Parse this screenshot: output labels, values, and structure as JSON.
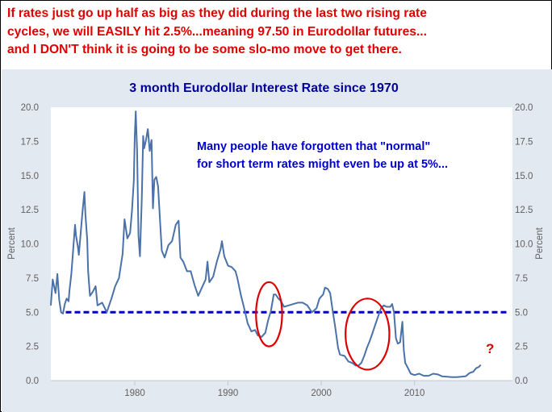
{
  "headline": {
    "lines": [
      "If rates just go up half as big as they did during the last two rising rate",
      "cycles, we will EASILY hit 2.5%...meaning 97.50 in Eurodollar futures...",
      "and I DON'T think it is going to be some slo-mo move to get there."
    ]
  },
  "colors": {
    "headline": "#e00000",
    "title": "#000099",
    "annotation": "#0000cc",
    "series": "#4a72a8",
    "reference_line": "#0000bb",
    "highlight_ellipse": "#dd0000",
    "panel_background": "#e3e9f0",
    "plot_background": "#ffffff"
  },
  "chart_data": {
    "type": "line",
    "title": "3 month Eurodollar Interest Rate since 1970",
    "xlabel": "",
    "ylabel": "Percent",
    "ylabel_right": "Percent",
    "xlim": [
      1971,
      2020.5
    ],
    "ylim": [
      0,
      20
    ],
    "x_ticks": [
      1980,
      1990,
      2000,
      2010
    ],
    "y_ticks": [
      "0.0",
      "2.5",
      "5.0",
      "7.5",
      "10.0",
      "12.5",
      "15.0",
      "17.5",
      "20.0"
    ],
    "grid": false,
    "legend": "none",
    "annotations": [
      "Many people have forgotten that \"normal\"",
      "for short term rates might even be up at 5%..."
    ],
    "question_mark": "?",
    "reference_line": {
      "y": 5.0,
      "style": "dashed"
    },
    "highlights": [
      {
        "x_range": [
          1993.0,
          1995.8
        ],
        "y_range": [
          2.5,
          7.2
        ]
      },
      {
        "x_range": [
          2002.6,
          2007.3
        ],
        "y_range": [
          0.8,
          6.0
        ]
      }
    ],
    "series": [
      {
        "values": [
          [
            1971.0,
            5.5
          ],
          [
            1971.2,
            7.4
          ],
          [
            1971.5,
            6.4
          ],
          [
            1971.7,
            7.8
          ],
          [
            1971.9,
            5.9
          ],
          [
            1972.1,
            5.0
          ],
          [
            1972.3,
            4.9
          ],
          [
            1972.5,
            5.6
          ],
          [
            1972.7,
            6.0
          ],
          [
            1972.9,
            5.8
          ],
          [
            1973.0,
            6.6
          ],
          [
            1973.2,
            7.8
          ],
          [
            1973.4,
            9.6
          ],
          [
            1973.6,
            11.4
          ],
          [
            1973.7,
            10.6
          ],
          [
            1973.9,
            9.8
          ],
          [
            1974.0,
            9.2
          ],
          [
            1974.2,
            10.8
          ],
          [
            1974.4,
            12.4
          ],
          [
            1974.6,
            13.8
          ],
          [
            1974.7,
            12.2
          ],
          [
            1974.9,
            10.3
          ],
          [
            1975.0,
            8.0
          ],
          [
            1975.2,
            6.2
          ],
          [
            1975.5,
            6.5
          ],
          [
            1975.8,
            6.9
          ],
          [
            1976.0,
            5.5
          ],
          [
            1976.5,
            5.7
          ],
          [
            1977.0,
            5.0
          ],
          [
            1977.5,
            6.0
          ],
          [
            1977.9,
            6.9
          ],
          [
            1978.3,
            7.5
          ],
          [
            1978.7,
            9.3
          ],
          [
            1978.9,
            11.8
          ],
          [
            1979.2,
            10.4
          ],
          [
            1979.5,
            10.8
          ],
          [
            1979.7,
            12.4
          ],
          [
            1979.9,
            14.6
          ],
          [
            1980.0,
            17.9
          ],
          [
            1980.1,
            19.7
          ],
          [
            1980.25,
            16.8
          ],
          [
            1980.4,
            10.6
          ],
          [
            1980.55,
            9.1
          ],
          [
            1980.75,
            13.3
          ],
          [
            1980.9,
            17.9
          ],
          [
            1981.0,
            17.0
          ],
          [
            1981.2,
            17.6
          ],
          [
            1981.4,
            18.4
          ],
          [
            1981.6,
            16.8
          ],
          [
            1981.8,
            17.6
          ],
          [
            1981.95,
            12.6
          ],
          [
            1982.1,
            14.7
          ],
          [
            1982.3,
            14.9
          ],
          [
            1982.5,
            14.2
          ],
          [
            1982.7,
            11.8
          ],
          [
            1982.9,
            9.5
          ],
          [
            1983.2,
            9.0
          ],
          [
            1983.6,
            9.9
          ],
          [
            1984.0,
            10.2
          ],
          [
            1984.4,
            11.4
          ],
          [
            1984.7,
            11.7
          ],
          [
            1984.9,
            9.0
          ],
          [
            1985.2,
            8.7
          ],
          [
            1985.6,
            8.0
          ],
          [
            1986.0,
            8.0
          ],
          [
            1986.4,
            7.0
          ],
          [
            1986.8,
            6.2
          ],
          [
            1987.2,
            6.8
          ],
          [
            1987.6,
            7.4
          ],
          [
            1987.8,
            8.7
          ],
          [
            1988.0,
            7.2
          ],
          [
            1988.4,
            7.6
          ],
          [
            1988.8,
            8.7
          ],
          [
            1989.2,
            9.6
          ],
          [
            1989.35,
            10.2
          ],
          [
            1989.6,
            9.1
          ],
          [
            1990.0,
            8.4
          ],
          [
            1990.4,
            8.3
          ],
          [
            1990.8,
            8.0
          ],
          [
            1991.0,
            7.5
          ],
          [
            1991.4,
            6.2
          ],
          [
            1991.8,
            5.1
          ],
          [
            1992.1,
            4.2
          ],
          [
            1992.5,
            3.6
          ],
          [
            1992.9,
            3.7
          ],
          [
            1993.2,
            3.3
          ],
          [
            1993.6,
            3.2
          ],
          [
            1994.0,
            3.5
          ],
          [
            1994.3,
            4.4
          ],
          [
            1994.6,
            5.1
          ],
          [
            1994.9,
            6.3
          ],
          [
            1995.1,
            6.3
          ],
          [
            1995.4,
            6.0
          ],
          [
            1995.7,
            5.8
          ],
          [
            1996.0,
            5.4
          ],
          [
            1996.5,
            5.5
          ],
          [
            1997.0,
            5.6
          ],
          [
            1997.5,
            5.7
          ],
          [
            1998.0,
            5.7
          ],
          [
            1998.5,
            5.5
          ],
          [
            1998.8,
            5.2
          ],
          [
            1999.0,
            5.0
          ],
          [
            1999.5,
            5.3
          ],
          [
            1999.8,
            6.0
          ],
          [
            2000.2,
            6.3
          ],
          [
            2000.4,
            6.8
          ],
          [
            2000.7,
            6.7
          ],
          [
            2000.95,
            6.4
          ],
          [
            2001.2,
            5.2
          ],
          [
            2001.5,
            3.9
          ],
          [
            2001.8,
            2.4
          ],
          [
            2002.0,
            1.9
          ],
          [
            2002.5,
            1.8
          ],
          [
            2002.9,
            1.4
          ],
          [
            2003.3,
            1.3
          ],
          [
            2003.7,
            1.1
          ],
          [
            2004.0,
            1.1
          ],
          [
            2004.3,
            1.3
          ],
          [
            2004.6,
            1.8
          ],
          [
            2004.9,
            2.4
          ],
          [
            2005.2,
            2.9
          ],
          [
            2005.5,
            3.5
          ],
          [
            2005.8,
            4.1
          ],
          [
            2006.1,
            4.7
          ],
          [
            2006.4,
            5.3
          ],
          [
            2006.7,
            5.5
          ],
          [
            2007.0,
            5.4
          ],
          [
            2007.4,
            5.4
          ],
          [
            2007.6,
            5.6
          ],
          [
            2007.8,
            5.0
          ],
          [
            2008.0,
            3.1
          ],
          [
            2008.2,
            2.7
          ],
          [
            2008.45,
            2.8
          ],
          [
            2008.7,
            4.3
          ],
          [
            2008.85,
            2.2
          ],
          [
            2009.0,
            1.3
          ],
          [
            2009.3,
            0.9
          ],
          [
            2009.6,
            0.5
          ],
          [
            2010.0,
            0.4
          ],
          [
            2010.5,
            0.5
          ],
          [
            2011.0,
            0.35
          ],
          [
            2011.5,
            0.35
          ],
          [
            2012.0,
            0.5
          ],
          [
            2012.5,
            0.45
          ],
          [
            2013.0,
            0.3
          ],
          [
            2013.5,
            0.28
          ],
          [
            2014.0,
            0.25
          ],
          [
            2014.5,
            0.25
          ],
          [
            2015.0,
            0.28
          ],
          [
            2015.5,
            0.32
          ],
          [
            2015.9,
            0.55
          ],
          [
            2016.3,
            0.65
          ],
          [
            2016.6,
            0.9
          ],
          [
            2016.9,
            1.0
          ],
          [
            2017.1,
            1.15
          ]
        ]
      }
    ]
  }
}
